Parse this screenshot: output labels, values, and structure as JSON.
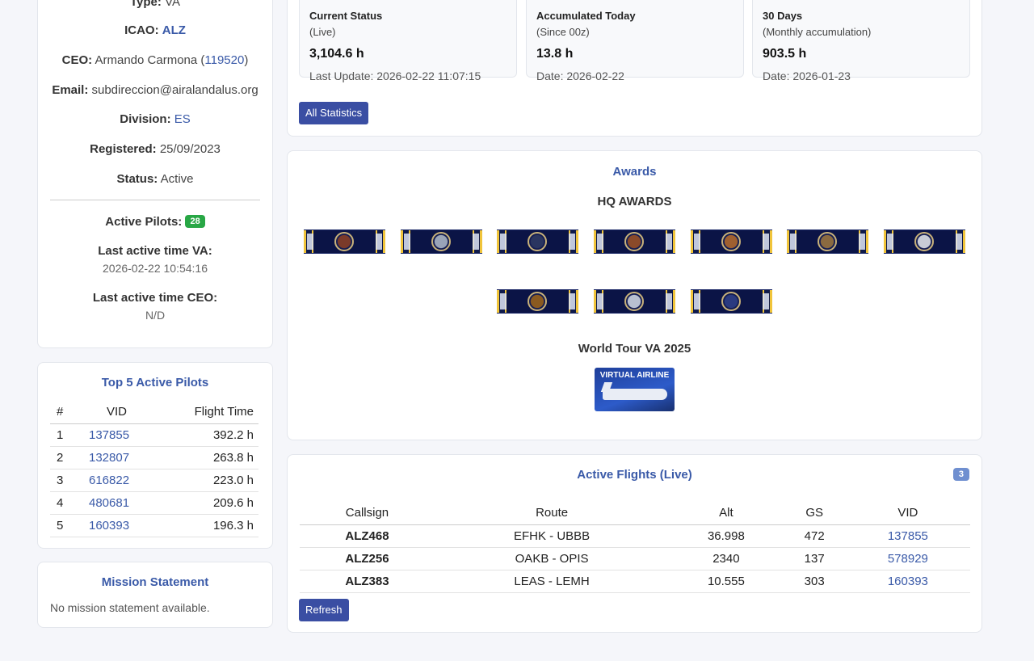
{
  "info": {
    "type_label": "Type:",
    "type_value": "VA",
    "icao_label": "ICAO:",
    "icao_value": "ALZ",
    "ceo_label": "CEO:",
    "ceo_name": "Armando Carmona (",
    "ceo_vid": "119520",
    "ceo_close": ")",
    "email_label": "Email:",
    "email_value": "subdireccion@airalandalus.org",
    "division_label": "Division:",
    "division_value": "ES",
    "registered_label": "Registered:",
    "registered_value": "25/09/2023",
    "status_label": "Status:",
    "status_value": "Active",
    "active_pilots_label": "Active Pilots:",
    "active_pilots_count": "28",
    "last_active_va_label": "Last active time VA:",
    "last_active_va_value": "2026-02-22 10:54:16",
    "last_active_ceo_label": "Last active time CEO:",
    "last_active_ceo_value": "N/D"
  },
  "top_pilots": {
    "title": "Top 5 Active Pilots",
    "headers": [
      "#",
      "VID",
      "Flight Time"
    ],
    "rows": [
      {
        "rank": "1",
        "vid": "137855",
        "time": "392.2 h"
      },
      {
        "rank": "2",
        "vid": "132807",
        "time": "263.8 h"
      },
      {
        "rank": "3",
        "vid": "616822",
        "time": "223.0 h"
      },
      {
        "rank": "4",
        "vid": "480681",
        "time": "209.6 h"
      },
      {
        "rank": "5",
        "vid": "160393",
        "time": "196.3 h"
      }
    ]
  },
  "mission": {
    "title": "Mission Statement",
    "text": "No mission statement available."
  },
  "stats": {
    "boxes": [
      {
        "title": "Current Status",
        "sub": "(Live)",
        "value": "3,104.6 h",
        "date": "Last Update: 2026-02-22 11:07:15"
      },
      {
        "title": "Accumulated Today",
        "sub": "(Since 00z)",
        "value": "13.8 h",
        "date": "Date: 2026-02-22"
      },
      {
        "title": "30 Days",
        "sub": "(Monthly accumulation)",
        "value": "903.5 h",
        "date": "Date: 2026-01-23"
      }
    ],
    "button_label": "All Statistics"
  },
  "awards": {
    "title": "Awards",
    "hq_heading": "HQ AWARDS",
    "world_tour_heading": "World Tour VA 2025",
    "world_tour_banner_text": "VIRTUAL AIRLINE",
    "ribbon_seal_colors": [
      "#7a3a2a",
      "#9aa4b8",
      "#2a3560",
      "#8a4a2a",
      "#a06030",
      "#8a6a40",
      "#c8ccd6",
      "#8a5a20",
      "#b8c0d0",
      "#2a3a80"
    ]
  },
  "flights": {
    "title": "Active Flights (Live)",
    "count": "3",
    "headers": [
      "Callsign",
      "Route",
      "Alt",
      "GS",
      "VID"
    ],
    "rows": [
      {
        "callsign": "ALZ468",
        "route": "EFHK - UBBB",
        "alt": "36.998",
        "gs": "472",
        "vid": "137855"
      },
      {
        "callsign": "ALZ256",
        "route": "OAKB - OPIS",
        "alt": "2340",
        "gs": "137",
        "vid": "578929"
      },
      {
        "callsign": "ALZ383",
        "route": "LEAS - LEMH",
        "alt": "10.555",
        "gs": "303",
        "vid": "160393"
      }
    ],
    "refresh_label": "Refresh"
  }
}
